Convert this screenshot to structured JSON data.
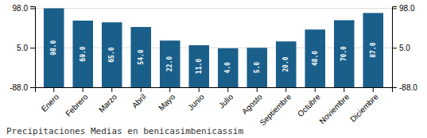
{
  "chart_data": {
    "type": "bar",
    "title": "Precipitaciones Medias en benicasimbenicassim",
    "categories": [
      "Enero",
      "Febrero",
      "Marzo",
      "Abril",
      "Mayo",
      "Junio",
      "Julio",
      "Agosto",
      "Septiembre",
      "Octubre",
      "Noviembre",
      "Diciembre"
    ],
    "values": [
      98.0,
      69.0,
      65.0,
      54.0,
      22.0,
      11.0,
      4.0,
      5.0,
      20.0,
      48.0,
      70.0,
      87.0
    ],
    "value_labels": [
      "98.0",
      "69.0",
      "65.0",
      "54.0",
      "22.0",
      "11.0",
      "4.0",
      "5.0",
      "20.0",
      "48.0",
      "70.0",
      "87.0"
    ],
    "data_labels": true,
    "color": "#1a5f8a",
    "ylim": [
      -88,
      102.65
    ],
    "yticks": [
      {
        "value": -88,
        "label": "-88.0"
      },
      {
        "value": 5,
        "label": "5.0"
      },
      {
        "value": 98,
        "label": "98.0"
      }
    ],
    "grid": true
  }
}
